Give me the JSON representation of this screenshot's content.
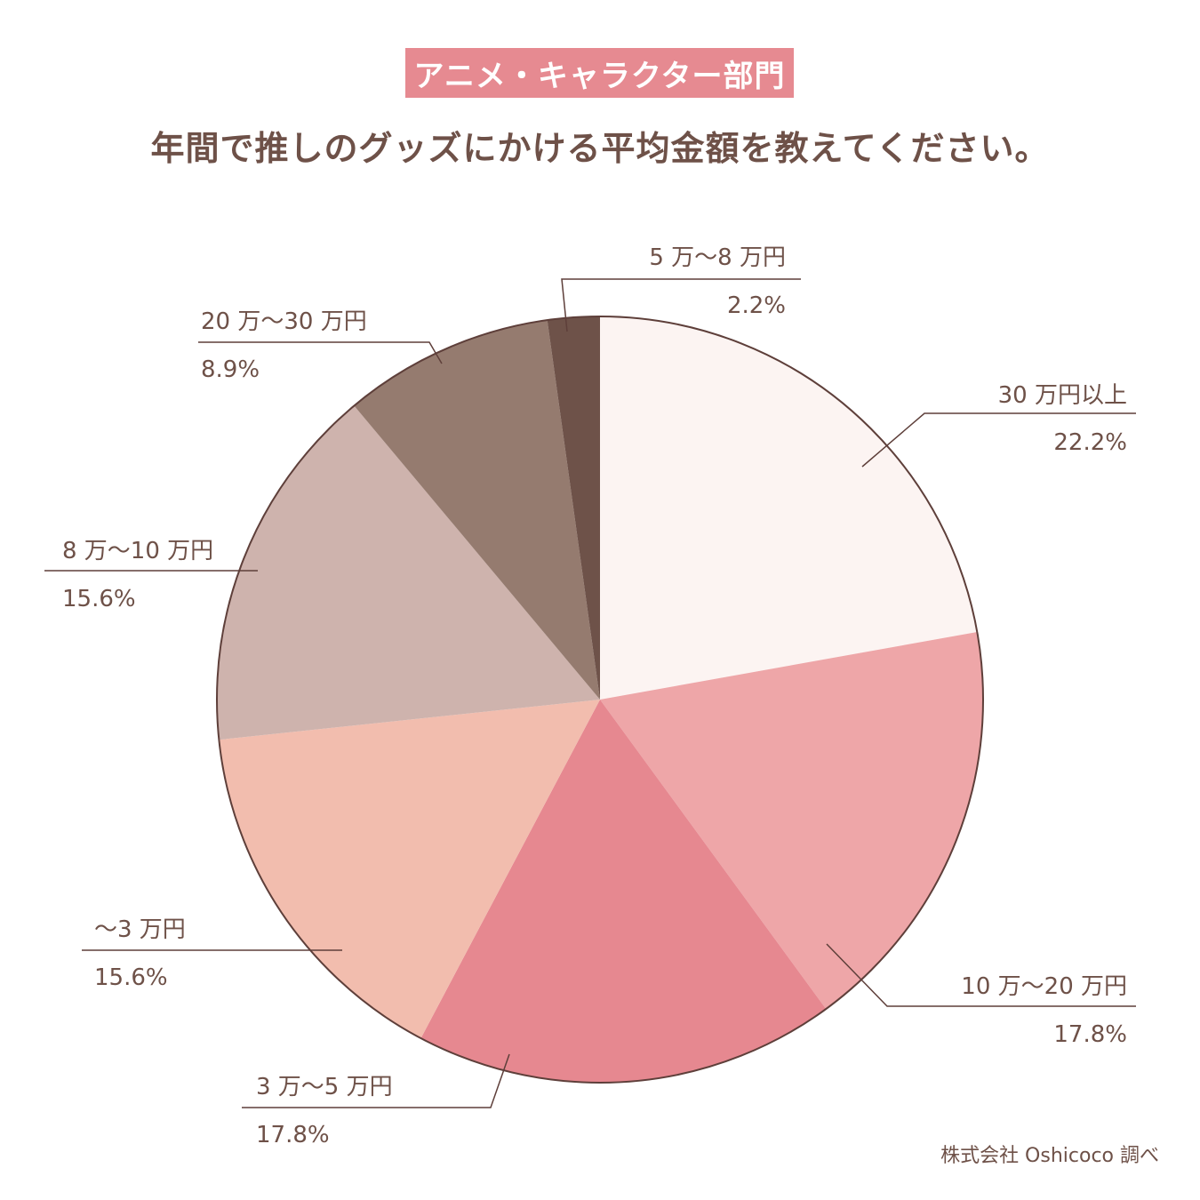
{
  "badge": "アニメ・キャラクター部門",
  "title": "年間で推しのグッズにかける平均金額を教えてください。",
  "credit": "株式会社 Oshicoco 調べ",
  "chart_data": {
    "type": "pie",
    "start": "12 o'clock",
    "direction": "clockwise",
    "slices": [
      {
        "label": "30 万円以上",
        "value": 22.2,
        "value_label": "22.2%",
        "color": "#fcf4f2"
      },
      {
        "label": "10 万〜20 万円",
        "value": 17.8,
        "value_label": "17.8%",
        "color": "#eea6a8"
      },
      {
        "label": "3 万〜5 万円",
        "value": 17.8,
        "value_label": "17.8%",
        "color": "#e68890"
      },
      {
        "label": "〜3 万円",
        "value": 15.6,
        "value_label": "15.6%",
        "color": "#f2bdae"
      },
      {
        "label": "8 万〜10 万円",
        "value": 15.6,
        "value_label": "15.6%",
        "color": "#ceb3ad"
      },
      {
        "label": "20 万〜30 万円",
        "value": 8.9,
        "value_label": "8.9%",
        "color": "#957b6f"
      },
      {
        "label": "5 万〜8 万円",
        "value": 2.2,
        "value_label": "2.2%",
        "color": "#6e5249"
      }
    ],
    "stroke_color": "#5e3f3a"
  }
}
